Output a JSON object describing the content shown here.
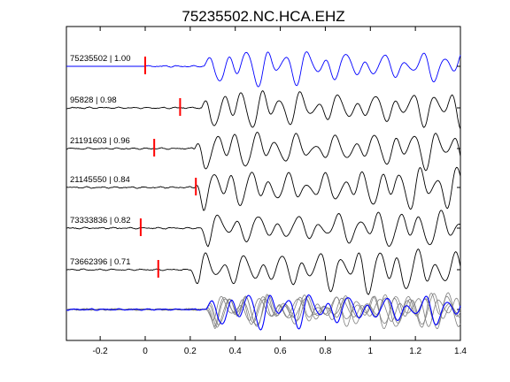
{
  "chart_data": {
    "type": "line",
    "title": "75235502.NC.HCA.EHZ",
    "xlabel": "",
    "ylabel": "",
    "xlim": [
      -0.35,
      1.4
    ],
    "xticks": [
      -0.2,
      0,
      0.2,
      0.4,
      0.6,
      0.8,
      1,
      1.2,
      1.4
    ],
    "xtick_labels": [
      "-0.2",
      "0",
      "0.2",
      "0.4",
      "0.6",
      "0.8",
      "1",
      "1.2",
      "1.4"
    ],
    "grid": false,
    "legend": "none",
    "colors": {
      "master": "#0000ff",
      "trace": "#000000",
      "pick": "#ff0000",
      "overlay_gray": "#808080"
    },
    "series": [
      {
        "label": "75235502 | 1.00",
        "pick_time": 0.0,
        "color": "#0000ff",
        "role": "master"
      },
      {
        "label": "95828 | 0.98",
        "pick_time": 0.155,
        "color": "#000000",
        "role": "trace"
      },
      {
        "label": "21191603 | 0.96",
        "pick_time": 0.04,
        "color": "#000000",
        "role": "trace"
      },
      {
        "label": "21145550 | 0.84",
        "pick_time": 0.225,
        "color": "#000000",
        "role": "trace"
      },
      {
        "label": "73333836 | 0.82",
        "pick_time": -0.02,
        "color": "#000000",
        "role": "trace"
      },
      {
        "label": "73662396 | 0.71",
        "pick_time": 0.058,
        "color": "#000000",
        "role": "trace"
      }
    ],
    "stack": {
      "description": "aligned overlay of all traces",
      "master_color": "#0000ff",
      "others_color": "#808080"
    }
  }
}
